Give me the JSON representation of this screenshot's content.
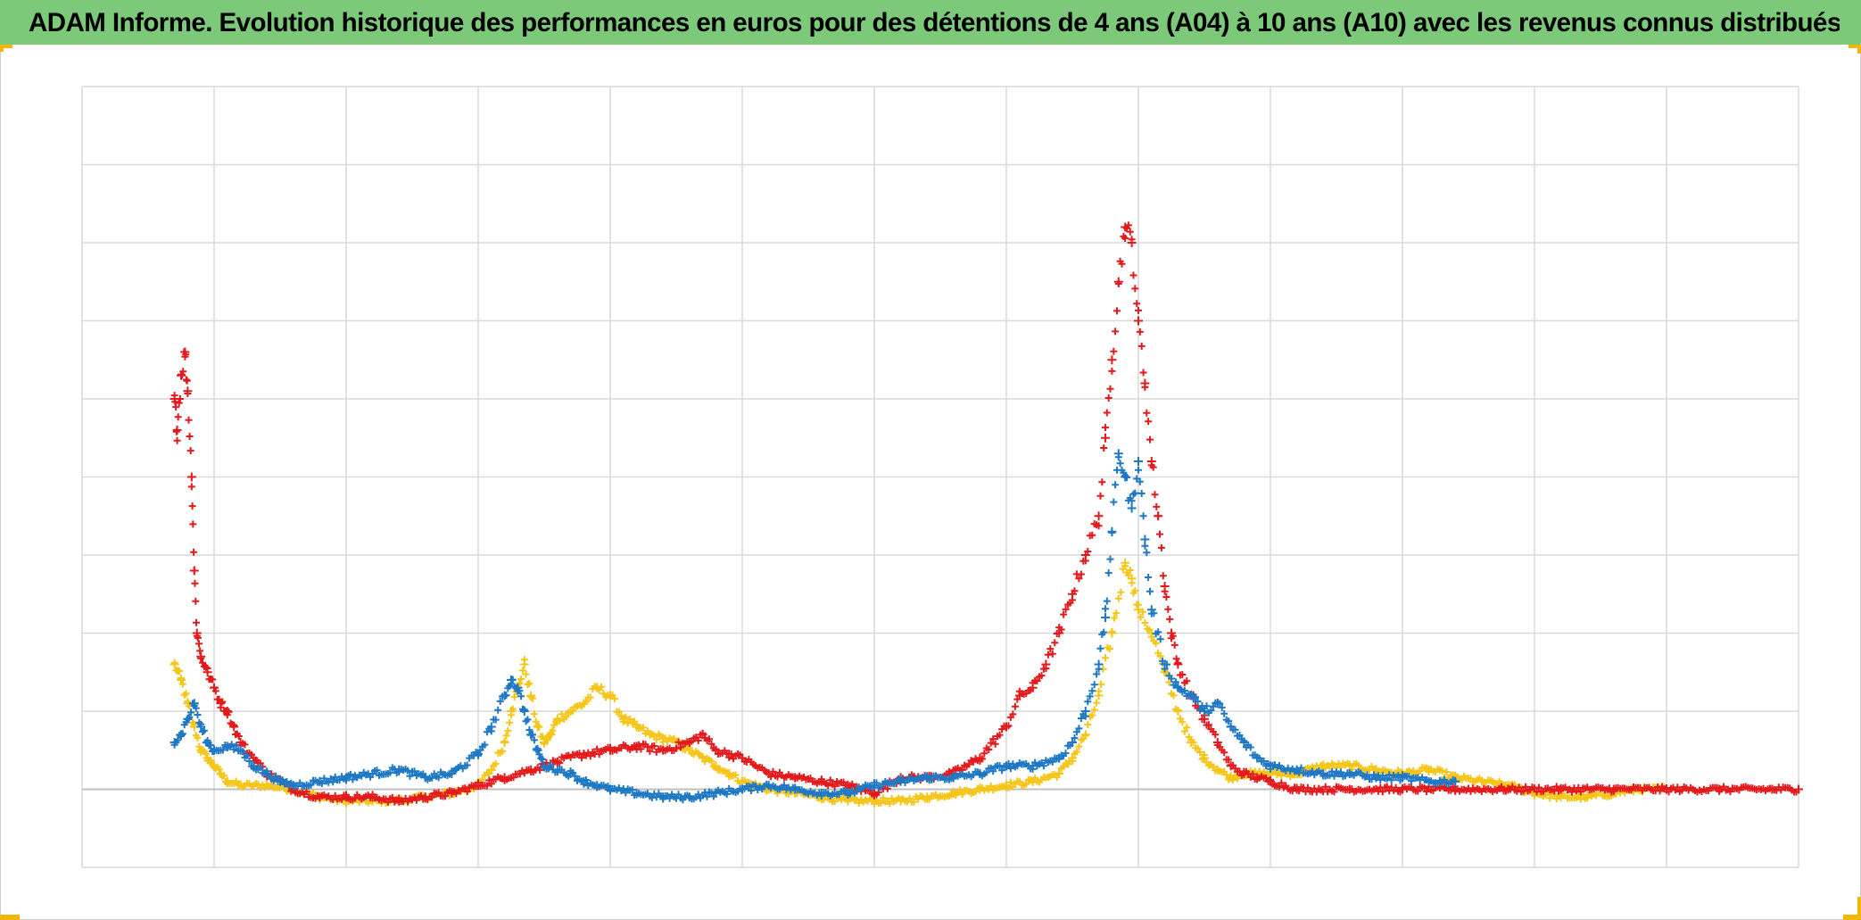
{
  "title": "ADAM Informe. Evolution historique des performances en euros pour des détentions de 4 ans (A04) à 10 ans (A10) avec les revenus connus distribués",
  "colors": {
    "title_bar": "#7cc97a",
    "corner_marks": "#f2b705",
    "grid": "#d9d9d9",
    "zero_line": "#bfbfbf"
  },
  "chart_data": {
    "type": "scatter",
    "marker": "plus",
    "title": "ADAM Informe. Evolution historique des performances en euros pour des détentions de 4 ans (A04) à 10 ans (A10) avec les revenus connus distribués",
    "xlabel": "",
    "ylabel": "",
    "tick_labels_visible": false,
    "grid": true,
    "legend": "none",
    "xlim": [
      0,
      13
    ],
    "ylim": [
      -1,
      9
    ],
    "zero_line": 0,
    "series": [
      {
        "color": "#f5c518",
        "points": [
          [
            0.7,
            1.6
          ],
          [
            0.75,
            1.4
          ],
          [
            0.8,
            1.1
          ],
          [
            0.85,
            0.8
          ],
          [
            0.9,
            0.5
          ],
          [
            0.95,
            0.4
          ],
          [
            1.0,
            0.3
          ],
          [
            1.05,
            0.2
          ],
          [
            1.1,
            0.1
          ],
          [
            1.2,
            0.05
          ],
          [
            1.4,
            0.05
          ],
          [
            1.6,
            0.0
          ],
          [
            1.8,
            -0.1
          ],
          [
            2.0,
            -0.15
          ],
          [
            2.2,
            -0.15
          ],
          [
            2.4,
            -0.15
          ],
          [
            2.6,
            -0.1
          ],
          [
            2.8,
            -0.05
          ],
          [
            3.0,
            0.05
          ],
          [
            3.1,
            0.25
          ],
          [
            3.2,
            0.6
          ],
          [
            3.25,
            1.0
          ],
          [
            3.3,
            1.3
          ],
          [
            3.35,
            1.6
          ],
          [
            3.4,
            1.2
          ],
          [
            3.45,
            0.8
          ],
          [
            3.5,
            0.6
          ],
          [
            3.55,
            0.7
          ],
          [
            3.6,
            0.9
          ],
          [
            3.7,
            1.0
          ],
          [
            3.8,
            1.1
          ],
          [
            3.9,
            1.3
          ],
          [
            4.0,
            1.2
          ],
          [
            4.1,
            0.9
          ],
          [
            4.2,
            0.8
          ],
          [
            4.3,
            0.7
          ],
          [
            4.4,
            0.65
          ],
          [
            4.5,
            0.6
          ],
          [
            4.6,
            0.5
          ],
          [
            4.7,
            0.4
          ],
          [
            4.8,
            0.3
          ],
          [
            4.9,
            0.2
          ],
          [
            5.0,
            0.1
          ],
          [
            5.2,
            0.0
          ],
          [
            5.4,
            -0.05
          ],
          [
            5.6,
            -0.1
          ],
          [
            5.8,
            -0.15
          ],
          [
            6.0,
            -0.15
          ],
          [
            6.2,
            -0.15
          ],
          [
            6.4,
            -0.1
          ],
          [
            6.6,
            -0.05
          ],
          [
            6.8,
            0.0
          ],
          [
            7.0,
            0.05
          ],
          [
            7.2,
            0.1
          ],
          [
            7.4,
            0.2
          ],
          [
            7.5,
            0.4
          ],
          [
            7.6,
            0.7
          ],
          [
            7.7,
            1.2
          ],
          [
            7.8,
            2.0
          ],
          [
            7.9,
            2.9
          ],
          [
            7.95,
            2.7
          ],
          [
            8.0,
            2.3
          ],
          [
            8.1,
            2.0
          ],
          [
            8.2,
            1.5
          ],
          [
            8.3,
            1.0
          ],
          [
            8.4,
            0.6
          ],
          [
            8.5,
            0.4
          ],
          [
            8.6,
            0.25
          ],
          [
            8.7,
            0.15
          ],
          [
            8.8,
            0.2
          ],
          [
            9.0,
            0.2
          ],
          [
            9.2,
            0.2
          ],
          [
            9.4,
            0.3
          ],
          [
            9.6,
            0.3
          ],
          [
            9.8,
            0.25
          ],
          [
            10.0,
            0.2
          ],
          [
            10.2,
            0.25
          ],
          [
            10.4,
            0.15
          ],
          [
            10.6,
            0.1
          ],
          [
            10.8,
            0.05
          ],
          [
            11.0,
            -0.05
          ],
          [
            11.2,
            -0.1
          ],
          [
            11.4,
            -0.1
          ],
          [
            11.6,
            -0.05
          ],
          [
            11.8,
            0.0
          ],
          [
            12.0,
            0.0
          ]
        ]
      },
      {
        "color": "#e31a1c",
        "points": [
          [
            0.7,
            5.0
          ],
          [
            0.72,
            4.6
          ],
          [
            0.75,
            5.3
          ],
          [
            0.78,
            5.6
          ],
          [
            0.8,
            5.1
          ],
          [
            0.83,
            4.0
          ],
          [
            0.85,
            2.8
          ],
          [
            0.87,
            2.0
          ],
          [
            0.9,
            1.7
          ],
          [
            0.95,
            1.5
          ],
          [
            1.0,
            1.3
          ],
          [
            1.05,
            1.1
          ],
          [
            1.1,
            1.0
          ],
          [
            1.15,
            0.8
          ],
          [
            1.2,
            0.6
          ],
          [
            1.3,
            0.4
          ],
          [
            1.4,
            0.2
          ],
          [
            1.6,
            0.0
          ],
          [
            1.8,
            -0.1
          ],
          [
            2.0,
            -0.1
          ],
          [
            2.2,
            -0.1
          ],
          [
            2.4,
            -0.15
          ],
          [
            2.6,
            -0.1
          ],
          [
            2.8,
            -0.05
          ],
          [
            3.0,
            0.05
          ],
          [
            3.2,
            0.15
          ],
          [
            3.4,
            0.25
          ],
          [
            3.6,
            0.35
          ],
          [
            3.8,
            0.45
          ],
          [
            4.0,
            0.5
          ],
          [
            4.2,
            0.55
          ],
          [
            4.4,
            0.5
          ],
          [
            4.6,
            0.6
          ],
          [
            4.7,
            0.7
          ],
          [
            4.8,
            0.5
          ],
          [
            4.9,
            0.45
          ],
          [
            5.0,
            0.4
          ],
          [
            5.2,
            0.2
          ],
          [
            5.4,
            0.15
          ],
          [
            5.6,
            0.1
          ],
          [
            5.8,
            0.05
          ],
          [
            6.0,
            -0.05
          ],
          [
            6.2,
            0.15
          ],
          [
            6.4,
            0.15
          ],
          [
            6.6,
            0.2
          ],
          [
            6.8,
            0.4
          ],
          [
            7.0,
            0.8
          ],
          [
            7.1,
            1.2
          ],
          [
            7.2,
            1.3
          ],
          [
            7.3,
            1.6
          ],
          [
            7.4,
            2.0
          ],
          [
            7.5,
            2.5
          ],
          [
            7.6,
            3.0
          ],
          [
            7.7,
            3.5
          ],
          [
            7.75,
            4.5
          ],
          [
            7.8,
            5.5
          ],
          [
            7.85,
            6.5
          ],
          [
            7.9,
            7.2
          ],
          [
            7.95,
            7.0
          ],
          [
            8.0,
            6.0
          ],
          [
            8.05,
            5.2
          ],
          [
            8.1,
            4.2
          ],
          [
            8.15,
            3.5
          ],
          [
            8.2,
            2.6
          ],
          [
            8.25,
            2.0
          ],
          [
            8.3,
            1.6
          ],
          [
            8.4,
            1.2
          ],
          [
            8.5,
            0.9
          ],
          [
            8.6,
            0.6
          ],
          [
            8.7,
            0.3
          ],
          [
            8.8,
            0.2
          ],
          [
            8.9,
            0.15
          ],
          [
            9.0,
            0.1
          ],
          [
            9.2,
            0.0
          ],
          [
            9.6,
            0.0
          ],
          [
            10.0,
            0.0
          ],
          [
            10.4,
            0.0
          ],
          [
            10.8,
            0.0
          ],
          [
            11.2,
            0.0
          ],
          [
            11.6,
            0.0
          ],
          [
            12.0,
            0.0
          ],
          [
            12.4,
            0.0
          ],
          [
            12.8,
            0.0
          ],
          [
            13.0,
            0.0
          ]
        ]
      },
      {
        "color": "#1f78c4",
        "points": [
          [
            0.7,
            0.6
          ],
          [
            0.75,
            0.7
          ],
          [
            0.8,
            0.9
          ],
          [
            0.85,
            1.1
          ],
          [
            0.9,
            0.8
          ],
          [
            0.95,
            0.6
          ],
          [
            1.0,
            0.5
          ],
          [
            1.1,
            0.55
          ],
          [
            1.2,
            0.5
          ],
          [
            1.3,
            0.3
          ],
          [
            1.4,
            0.2
          ],
          [
            1.5,
            0.1
          ],
          [
            1.6,
            0.05
          ],
          [
            1.8,
            0.1
          ],
          [
            2.0,
            0.15
          ],
          [
            2.2,
            0.2
          ],
          [
            2.4,
            0.25
          ],
          [
            2.6,
            0.15
          ],
          [
            2.8,
            0.2
          ],
          [
            3.0,
            0.45
          ],
          [
            3.1,
            0.8
          ],
          [
            3.2,
            1.2
          ],
          [
            3.25,
            1.4
          ],
          [
            3.3,
            1.3
          ],
          [
            3.35,
            1.0
          ],
          [
            3.4,
            0.7
          ],
          [
            3.45,
            0.5
          ],
          [
            3.5,
            0.3
          ],
          [
            3.6,
            0.25
          ],
          [
            3.7,
            0.2
          ],
          [
            3.8,
            0.1
          ],
          [
            3.9,
            0.05
          ],
          [
            4.0,
            0.0
          ],
          [
            4.2,
            -0.05
          ],
          [
            4.4,
            -0.1
          ],
          [
            4.6,
            -0.1
          ],
          [
            4.8,
            -0.05
          ],
          [
            5.0,
            0.0
          ],
          [
            5.2,
            0.05
          ],
          [
            5.4,
            0.0
          ],
          [
            5.6,
            -0.05
          ],
          [
            5.8,
            -0.05
          ],
          [
            6.0,
            0.05
          ],
          [
            6.2,
            0.1
          ],
          [
            6.4,
            0.15
          ],
          [
            6.6,
            0.15
          ],
          [
            6.8,
            0.2
          ],
          [
            7.0,
            0.3
          ],
          [
            7.2,
            0.3
          ],
          [
            7.4,
            0.4
          ],
          [
            7.5,
            0.6
          ],
          [
            7.6,
            1.0
          ],
          [
            7.7,
            1.6
          ],
          [
            7.75,
            2.2
          ],
          [
            7.8,
            3.3
          ],
          [
            7.85,
            4.3
          ],
          [
            7.9,
            4.0
          ],
          [
            7.95,
            3.6
          ],
          [
            8.0,
            4.2
          ],
          [
            8.05,
            3.2
          ],
          [
            8.1,
            2.3
          ],
          [
            8.2,
            1.6
          ],
          [
            8.3,
            1.3
          ],
          [
            8.4,
            1.2
          ],
          [
            8.5,
            1.0
          ],
          [
            8.6,
            1.1
          ],
          [
            8.7,
            0.8
          ],
          [
            8.8,
            0.6
          ],
          [
            8.9,
            0.4
          ],
          [
            9.0,
            0.3
          ],
          [
            9.2,
            0.25
          ],
          [
            9.4,
            0.2
          ],
          [
            9.6,
            0.2
          ],
          [
            9.8,
            0.15
          ],
          [
            10.0,
            0.15
          ],
          [
            10.2,
            0.1
          ],
          [
            10.4,
            0.1
          ]
        ]
      }
    ]
  }
}
